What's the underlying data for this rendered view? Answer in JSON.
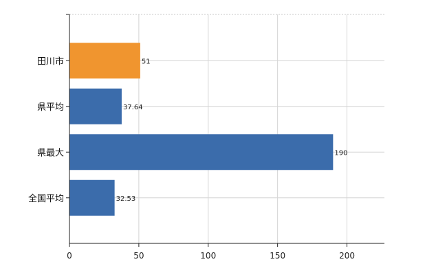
{
  "chart_data": {
    "type": "bar",
    "orientation": "horizontal",
    "categories": [
      "田川市",
      "県平均",
      "県最大",
      "全国平均"
    ],
    "values": [
      51,
      37.64,
      190,
      32.53
    ],
    "data_labels": [
      "51",
      "37.64",
      "190",
      "32.53"
    ],
    "bar_colors": [
      "#f0952f",
      "#3b6cab",
      "#3b6cab",
      "#3b6cab"
    ],
    "highlight_color": "#f0952f",
    "default_color": "#3b6cab",
    "x_ticks": [
      0,
      50,
      100,
      150,
      200
    ],
    "xlim": [
      0,
      227
    ],
    "grid": true,
    "legend": "none"
  }
}
